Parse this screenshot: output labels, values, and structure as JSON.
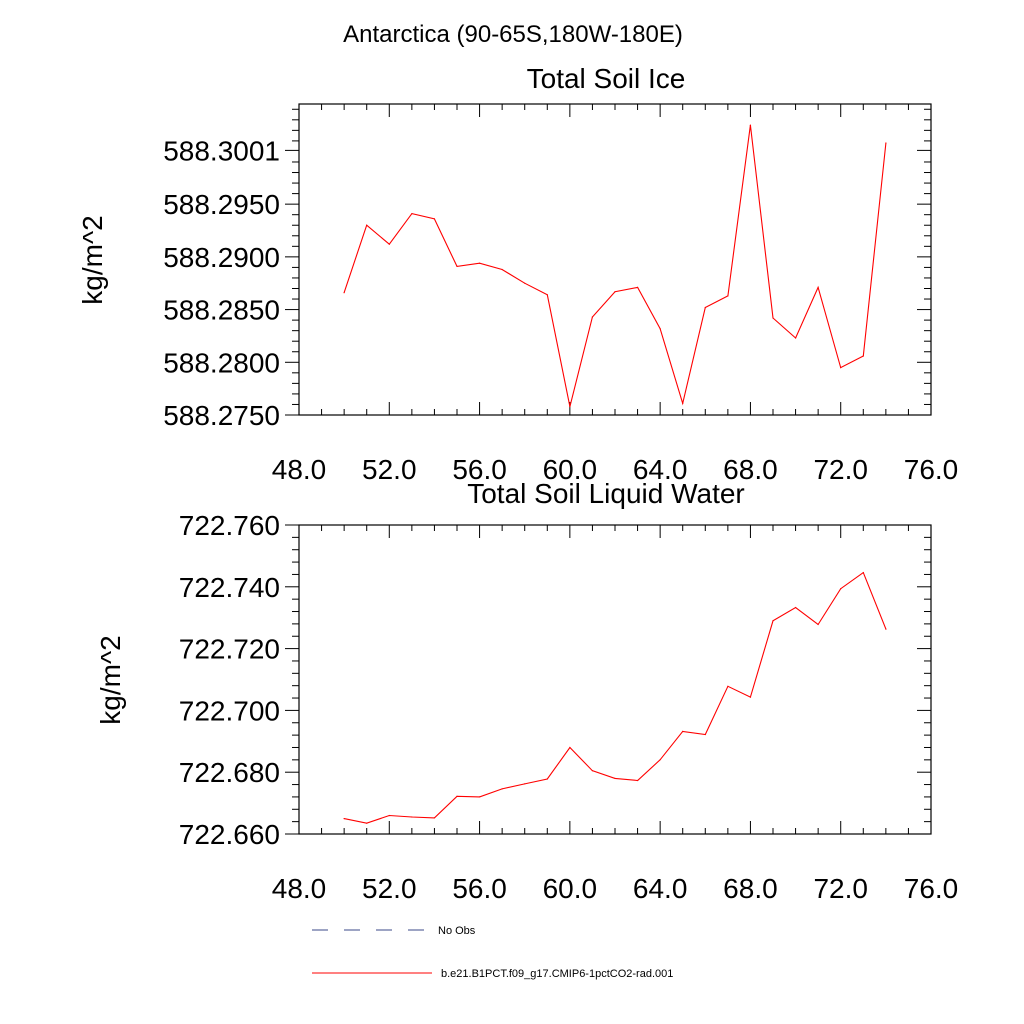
{
  "page_title": "Antarctica (90-65S,180W-180E)",
  "colors": {
    "series": "#ff0000",
    "no_obs": "#3b4a8a",
    "axis": "#000000"
  },
  "legend": {
    "items": [
      {
        "label": "No Obs",
        "style": "dashed",
        "color": "#3b4a8a"
      },
      {
        "label": "b.e21.B1PCT.f09_g17.CMIP6-1pctCO2-rad.001",
        "style": "solid",
        "color": "#ff0000"
      }
    ]
  },
  "chart_data": [
    {
      "type": "line",
      "title": "Total Soil Ice",
      "xlabel": "",
      "ylabel": "kg/m^2",
      "xlim": [
        48,
        76
      ],
      "ylim": [
        588.275,
        588.3045
      ],
      "grid": false,
      "xticks": [
        48,
        52,
        56,
        60,
        64,
        68,
        72,
        76
      ],
      "xtick_labels": [
        "48.0",
        "52.0",
        "56.0",
        "60.0",
        "64.0",
        "68.0",
        "72.0",
        "76.0"
      ],
      "yticks": [
        588.275,
        588.28,
        588.285,
        588.29,
        588.295,
        588.3001
      ],
      "ytick_labels": [
        "588.2750",
        "588.2800",
        "588.2850",
        "588.2900",
        "588.2950",
        "588.3001"
      ],
      "series": [
        {
          "name": "b.e21.B1PCT.f09_g17.CMIP6-1pctCO2-rad.001",
          "x": [
            50,
            51,
            52,
            53,
            54,
            55,
            56,
            57,
            58,
            59,
            60,
            61,
            62,
            63,
            64,
            65,
            66,
            67,
            68,
            69,
            70,
            71,
            72,
            73,
            74
          ],
          "y": [
            588.2866,
            588.293,
            588.2912,
            588.2941,
            588.2936,
            588.2891,
            588.2894,
            588.2888,
            588.2875,
            588.2864,
            588.2758,
            588.2843,
            588.2867,
            588.2871,
            588.2832,
            588.2761,
            588.2852,
            588.2863,
            588.3025,
            588.2842,
            588.2823,
            588.2871,
            588.2795,
            588.2806,
            588.3008
          ]
        }
      ]
    },
    {
      "type": "line",
      "title": "Total Soil Liquid Water",
      "xlabel": "",
      "ylabel": "kg/m^2",
      "xlim": [
        48,
        76
      ],
      "ylim": [
        722.66,
        722.76
      ],
      "grid": false,
      "xticks": [
        48,
        52,
        56,
        60,
        64,
        68,
        72,
        76
      ],
      "xtick_labels": [
        "48.0",
        "52.0",
        "56.0",
        "60.0",
        "64.0",
        "68.0",
        "72.0",
        "76.0"
      ],
      "yticks": [
        722.66,
        722.68,
        722.7,
        722.72,
        722.74,
        722.76
      ],
      "ytick_labels": [
        "722.660",
        "722.680",
        "722.700",
        "722.720",
        "722.740",
        "722.760"
      ],
      "series": [
        {
          "name": "b.e21.B1PCT.f09_g17.CMIP6-1pctCO2-rad.001",
          "x": [
            50,
            51,
            52,
            53,
            54,
            55,
            56,
            57,
            58,
            59,
            60,
            61,
            62,
            63,
            64,
            65,
            66,
            67,
            68,
            69,
            70,
            71,
            72,
            73,
            74
          ],
          "y": [
            722.665,
            722.6635,
            722.666,
            722.6655,
            722.6652,
            722.6722,
            722.672,
            722.6746,
            722.6762,
            722.6778,
            722.688,
            722.6805,
            722.678,
            722.6773,
            722.684,
            722.6932,
            722.6922,
            722.7078,
            722.7043,
            722.729,
            722.7333,
            722.7278,
            722.7394,
            722.7446,
            722.7263
          ]
        }
      ]
    }
  ]
}
